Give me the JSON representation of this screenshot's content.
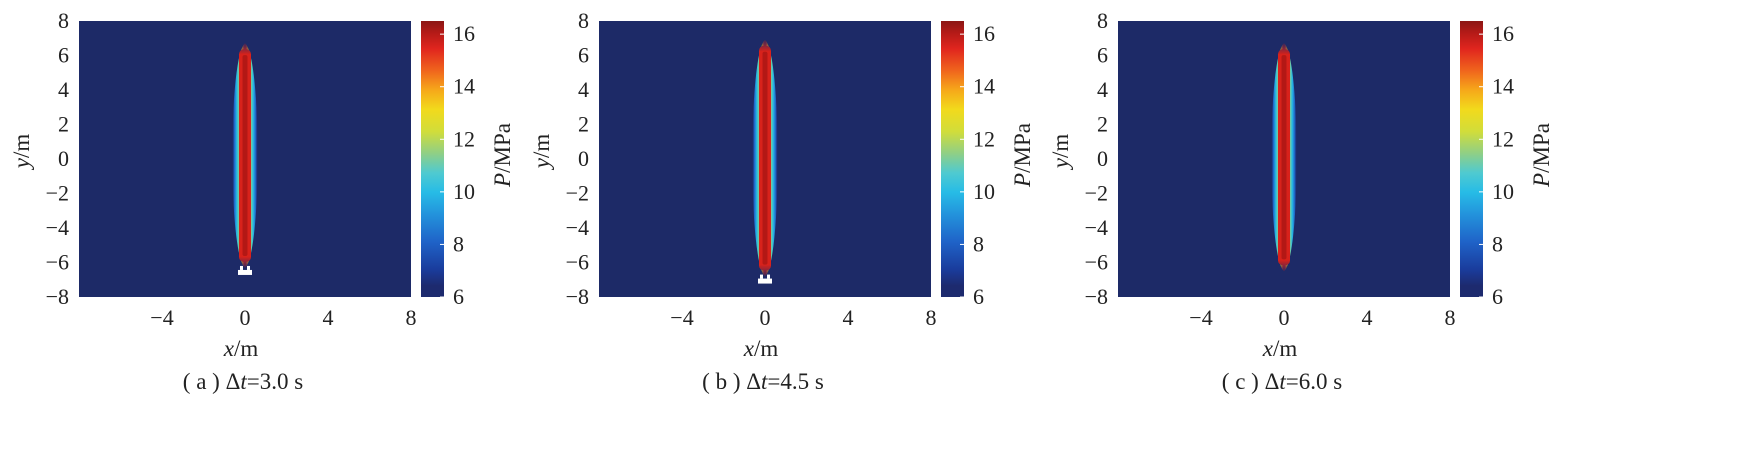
{
  "chart_data": [
    {
      "type": "heatmap",
      "caption": "( a ) Δt=3.0 s",
      "caption_parts": {
        "prefix": "( a ) Δ",
        "var": "t",
        "suffix": "=3.0 s"
      },
      "xlabel": {
        "var": "x",
        "unit": "/m"
      },
      "ylabel": {
        "var": "y",
        "unit": "/m"
      },
      "xlim": [
        -8,
        8
      ],
      "ylim": [
        -8,
        8
      ],
      "xticks": [
        -4,
        0,
        4,
        8
      ],
      "yticks": [
        8,
        6,
        4,
        2,
        0,
        -2,
        -4,
        -6,
        -8
      ],
      "xticklabels": [
        "−4",
        "0",
        "4",
        "8"
      ],
      "yticklabels": [
        "8",
        "6",
        "4",
        "2",
        "0",
        "−2",
        "−4",
        "−6",
        "−8"
      ],
      "colorbar": {
        "label": {
          "var": "P",
          "unit": "/MPa"
        },
        "range": [
          6,
          16.5
        ],
        "ticks": [
          16,
          14,
          12,
          10,
          8,
          6
        ],
        "ticklabels": [
          "16",
          "14",
          "12",
          "10",
          "8",
          "6"
        ]
      },
      "field": {
        "background_value": 6.3,
        "center_x": 0.0,
        "y_top": 6.6,
        "y_bottom": -6.2,
        "peak_value": 16.2,
        "bottom_artifact": true
      }
    },
    {
      "type": "heatmap",
      "caption": "( b ) Δt=4.5 s",
      "caption_parts": {
        "prefix": "( b ) Δ",
        "var": "t",
        "suffix": "=4.5 s"
      },
      "xlabel": {
        "var": "x",
        "unit": "/m"
      },
      "ylabel": {
        "var": "y",
        "unit": "/m"
      },
      "xlim": [
        -8,
        8
      ],
      "ylim": [
        -8,
        8
      ],
      "xticks": [
        -4,
        0,
        4,
        8
      ],
      "yticks": [
        8,
        6,
        4,
        2,
        0,
        -2,
        -4,
        -6,
        -8
      ],
      "xticklabels": [
        "−4",
        "0",
        "4",
        "8"
      ],
      "yticklabels": [
        "8",
        "6",
        "4",
        "2",
        "0",
        "−2",
        "−4",
        "−6",
        "−8"
      ],
      "colorbar": {
        "label": {
          "var": "P",
          "unit": "/MPa"
        },
        "range": [
          6,
          16.5
        ],
        "ticks": [
          16,
          14,
          12,
          10,
          8,
          6
        ],
        "ticklabels": [
          "16",
          "14",
          "12",
          "10",
          "8",
          "6"
        ]
      },
      "field": {
        "background_value": 6.3,
        "center_x": 0.0,
        "y_top": 6.8,
        "y_bottom": -6.7,
        "peak_value": 16.2,
        "bottom_artifact": true
      }
    },
    {
      "type": "heatmap",
      "caption": "( c ) Δt=6.0 s",
      "caption_parts": {
        "prefix": "( c ) Δ",
        "var": "t",
        "suffix": "=6.0 s"
      },
      "xlabel": {
        "var": "x",
        "unit": "/m"
      },
      "ylabel": {
        "var": "y",
        "unit": "/m"
      },
      "xlim": [
        -8,
        8
      ],
      "ylim": [
        -8,
        8
      ],
      "xticks": [
        -4,
        0,
        4,
        8
      ],
      "yticks": [
        8,
        6,
        4,
        2,
        0,
        -2,
        -4,
        -6,
        -8
      ],
      "xticklabels": [
        "−4",
        "0",
        "4",
        "8"
      ],
      "yticklabels": [
        "8",
        "6",
        "4",
        "2",
        "0",
        "−2",
        "−4",
        "−6",
        "−8"
      ],
      "colorbar": {
        "label": {
          "var": "P",
          "unit": "/MPa"
        },
        "range": [
          6,
          16.5
        ],
        "ticks": [
          16,
          14,
          12,
          10,
          8,
          6
        ],
        "ticklabels": [
          "16",
          "14",
          "12",
          "10",
          "8",
          "6"
        ]
      },
      "field": {
        "background_value": 6.3,
        "center_x": 0.0,
        "y_top": 6.6,
        "y_bottom": -6.4,
        "peak_value": 16.2,
        "bottom_artifact": false
      }
    }
  ]
}
